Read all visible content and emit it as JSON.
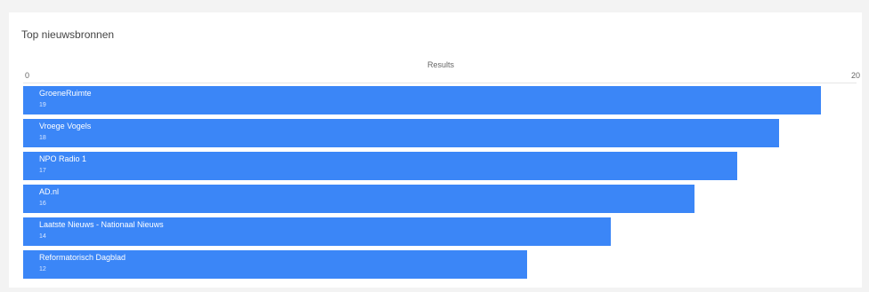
{
  "chart_data": {
    "type": "bar",
    "orientation": "horizontal",
    "title": "Top nieuwsbronnen",
    "xlabel": "Results",
    "xlim": [
      0,
      20
    ],
    "ticks": [
      "0",
      "20"
    ],
    "categories": [
      "GroeneRuimte",
      "Vroege Vogels",
      "NPO Radio 1",
      "AD.nl",
      "Laatste Nieuws - Nationaal Nieuws",
      "Reformatorisch Dagblad"
    ],
    "values": [
      19,
      18,
      17,
      16,
      14,
      12
    ],
    "value_labels": [
      "19",
      "18",
      "17",
      "16",
      "14",
      "12"
    ],
    "bar_color": "#3b86f7",
    "grid": false,
    "legend": "none"
  }
}
